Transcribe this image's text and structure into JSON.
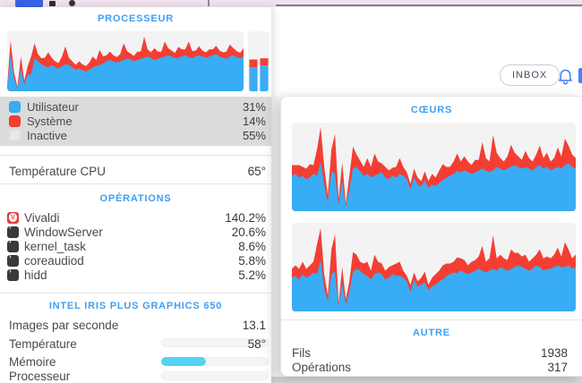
{
  "colors": {
    "user_blue": "#38ACF4",
    "system_red": "#F43E33",
    "inactive_gray": "#E8E8E8",
    "accent_blue": "#3E9FF3",
    "memory_cyan": "#55D2F6",
    "graph_bg": "#F3F3F4",
    "legend_bg": "#DBDBDB"
  },
  "page_header": {
    "inbox_button": "INBOX"
  },
  "cpu_panel": {
    "title": "PROCESSEUR",
    "legend": [
      {
        "label": "Utilisateur",
        "value": "31%",
        "color": "#38ACF4"
      },
      {
        "label": "Système",
        "value": "14%",
        "color": "#F43E33"
      },
      {
        "label": "Inactive",
        "value": "55%",
        "color": "#E8E8E8"
      }
    ],
    "temperature_row": {
      "label": "Température CPU",
      "value": "65°"
    },
    "operations": {
      "title": "OPÉRATIONS",
      "processes": [
        {
          "name": "Vivaldi",
          "cpu": "140.2%"
        },
        {
          "name": "WindowServer",
          "cpu": "20.6%"
        },
        {
          "name": "kernel_task",
          "cpu": "8.6%"
        },
        {
          "name": "coreaudiod",
          "cpu": "5.8%"
        },
        {
          "name": "hidd",
          "cpu": "5.2%"
        }
      ]
    },
    "gpu": {
      "title": "INTEL IRIS PLUS GRAPHICS 650",
      "fps_row": {
        "label": "Images par seconde",
        "value": "13.1"
      },
      "temperature_row": {
        "label": "Température",
        "value": "58°",
        "fill": "0%"
      },
      "memory_row": {
        "label": "Mémoire",
        "fill": "42%"
      },
      "processor_row": {
        "label": "Processeur",
        "fill": "0%"
      }
    }
  },
  "cores_panel": {
    "title": "CŒURS",
    "other": {
      "title": "AUTRE",
      "rows": [
        {
          "label": "Fils",
          "value": "1938"
        },
        {
          "label": "Opérations",
          "value": "317"
        }
      ]
    }
  },
  "chart_data": {
    "cpu_history": {
      "type": "area",
      "title": "PROCESSEUR history (stacked area, % CPU over time)",
      "ylim": [
        0,
        100
      ],
      "grid": false,
      "series": [
        {
          "name": "Utilisateur",
          "color": "#38ACF4",
          "values": [
            5,
            60,
            22,
            4,
            38,
            12,
            28,
            28,
            55,
            50,
            45,
            42,
            40,
            44,
            40,
            38,
            42,
            45,
            44,
            40,
            36,
            38,
            35,
            33,
            36,
            40,
            42,
            44,
            46,
            50,
            52,
            50,
            48,
            50,
            52,
            55,
            53,
            50,
            52,
            54,
            56,
            58,
            55,
            52,
            54,
            56,
            58,
            60,
            58,
            55,
            56,
            58,
            60,
            57,
            55,
            58,
            60,
            58,
            56,
            58,
            60,
            62,
            58,
            56,
            54,
            58,
            60,
            57,
            55,
            58
          ]
        },
        {
          "name": "Système",
          "color": "#F43E33",
          "values": [
            3,
            25,
            10,
            3,
            20,
            6,
            14,
            30,
            25,
            12,
            10,
            14,
            25,
            12,
            10,
            9,
            16,
            30,
            12,
            10,
            8,
            12,
            10,
            9,
            12,
            18,
            10,
            25,
            12,
            10,
            14,
            10,
            9,
            12,
            28,
            12,
            10,
            9,
            14,
            12,
            35,
            12,
            10,
            20,
            12,
            10,
            25,
            12,
            10,
            9,
            18,
            12,
            10,
            26,
            12,
            10,
            15,
            10,
            9,
            12,
            10,
            14,
            10,
            9,
            12,
            20,
            12,
            10,
            9,
            14
          ]
        }
      ]
    },
    "cpu_core_bars": {
      "type": "bar",
      "title": "Current per-core load (stacked bars, %)",
      "ylim": [
        0,
        100
      ],
      "user_color": "#38ACF4",
      "system_color": "#F43E33",
      "bars": [
        {
          "user": 40,
          "system": 13
        },
        {
          "user": 43,
          "system": 12
        }
      ]
    },
    "core1_history": {
      "type": "area",
      "title": "Core 1 history (stacked area, % CPU over time)",
      "ylim": [
        0,
        100
      ],
      "grid": false,
      "series": [
        {
          "name": "Utilisateur",
          "color": "#38ACF4",
          "values": [
            40,
            42,
            38,
            40,
            36,
            38,
            42,
            40,
            55,
            30,
            10,
            45,
            42,
            8,
            35,
            5,
            25,
            48,
            50,
            45,
            40,
            42,
            38,
            40,
            42,
            44,
            38,
            36,
            40,
            38,
            42,
            40,
            36,
            25,
            38,
            30,
            28,
            35,
            26,
            30,
            28,
            32,
            35,
            38,
            40,
            42,
            45,
            44,
            46,
            44,
            42,
            44,
            46,
            48,
            46,
            44,
            46,
            50,
            48,
            46,
            48,
            50,
            52,
            50,
            48,
            50,
            48,
            46,
            50,
            52,
            48,
            50,
            46,
            48,
            50,
            48,
            52,
            54,
            50,
            48
          ]
        },
        {
          "name": "Système",
          "color": "#F43E33",
          "values": [
            12,
            10,
            14,
            10,
            12,
            15,
            10,
            30,
            40,
            20,
            8,
            25,
            45,
            6,
            20,
            4,
            15,
            25,
            14,
            12,
            10,
            18,
            12,
            25,
            14,
            10,
            12,
            10,
            9,
            12,
            18,
            10,
            8,
            6,
            10,
            8,
            6,
            10,
            8,
            12,
            10,
            14,
            18,
            12,
            10,
            14,
            20,
            12,
            16,
            12,
            10,
            14,
            12,
            30,
            14,
            12,
            40,
            16,
            12,
            10,
            14,
            25,
            14,
            12,
            10,
            18,
            12,
            10,
            14,
            22,
            12,
            16,
            10,
            12,
            22,
            14,
            30,
            20,
            14,
            12
          ]
        }
      ]
    },
    "core2_history": {
      "type": "area",
      "title": "Core 2 history (stacked area, % CPU over time)",
      "ylim": [
        0,
        100
      ],
      "grid": false,
      "series": [
        {
          "name": "Utilisateur",
          "color": "#38ACF4",
          "values": [
            38,
            40,
            36,
            42,
            38,
            40,
            44,
            42,
            58,
            26,
            12,
            42,
            45,
            6,
            32,
            8,
            22,
            45,
            48,
            46,
            42,
            40,
            36,
            42,
            44,
            42,
            36,
            38,
            42,
            40,
            40,
            38,
            34,
            22,
            36,
            28,
            30,
            33,
            24,
            28,
            30,
            34,
            36,
            40,
            42,
            44,
            43,
            46,
            44,
            42,
            44,
            46,
            48,
            46,
            44,
            46,
            48,
            46,
            50,
            48,
            46,
            48,
            50,
            52,
            50,
            48,
            46,
            48,
            52,
            50,
            46,
            48,
            48,
            50,
            52,
            50,
            50,
            52,
            48,
            50
          ]
        },
        {
          "name": "Système",
          "color": "#F43E33",
          "values": [
            10,
            12,
            12,
            14,
            10,
            12,
            12,
            34,
            36,
            16,
            6,
            28,
            42,
            4,
            18,
            6,
            12,
            22,
            16,
            10,
            12,
            16,
            10,
            22,
            12,
            12,
            10,
            12,
            10,
            14,
            16,
            8,
            6,
            8,
            8,
            6,
            8,
            12,
            6,
            10,
            12,
            12,
            16,
            14,
            12,
            12,
            18,
            14,
            14,
            10,
            12,
            12,
            14,
            28,
            12,
            14,
            38,
            14,
            14,
            12,
            12,
            22,
            16,
            14,
            12,
            16,
            10,
            12,
            12,
            20,
            14,
            14,
            12,
            14,
            20,
            12,
            28,
            18,
            12,
            14
          ]
        }
      ]
    }
  }
}
